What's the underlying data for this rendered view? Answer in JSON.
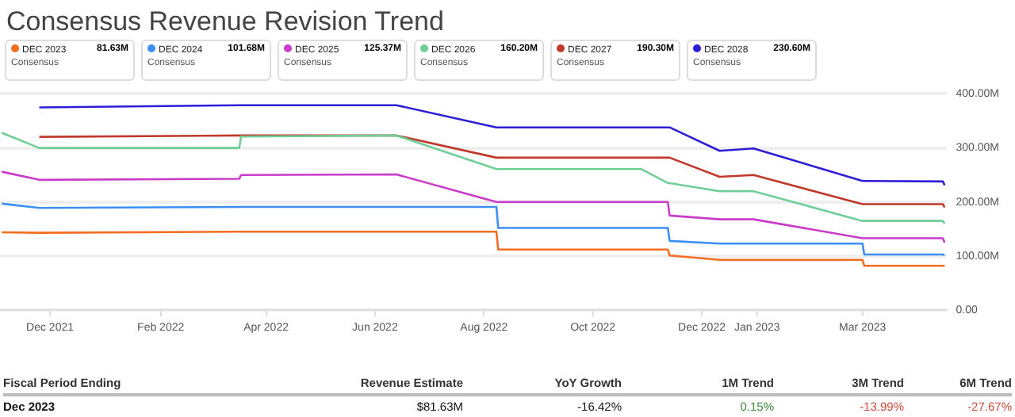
{
  "chart_data": {
    "type": "line",
    "title": "Consensus Revenue Revision Trend",
    "legend": "top",
    "grid": "y",
    "marker": "none",
    "line_style": "solid",
    "x": [
      "2021-11-04",
      "2021-11-25",
      "2022-03-17",
      "2022-03-18",
      "2022-06-13",
      "2022-08-08",
      "2022-08-09",
      "2022-10-28",
      "2022-11-12",
      "2022-11-13",
      "2022-12-11",
      "2022-12-30",
      "2023-03-01",
      "2023-03-02",
      "2023-04-15",
      "2023-04-16"
    ],
    "xlim": [
      "2021-11-03",
      "2023-04-17"
    ],
    "xticks": [
      {
        "value": "2021-12-01",
        "label": "Dec 2021"
      },
      {
        "value": "2022-02-01",
        "label": "Feb 2022"
      },
      {
        "value": "2022-04-01",
        "label": "Apr 2022"
      },
      {
        "value": "2022-06-01",
        "label": "Jun 2022"
      },
      {
        "value": "2022-08-01",
        "label": "Aug 2022"
      },
      {
        "value": "2022-10-01",
        "label": "Oct 2022"
      },
      {
        "value": "2022-12-01",
        "label": "Dec 2022"
      },
      {
        "value": "2023-01-01",
        "label": "Jan 2023"
      },
      {
        "value": "2023-03-01",
        "label": "Mar 2023"
      }
    ],
    "ylim": [
      0,
      400
    ],
    "yticks": [
      {
        "value": 0,
        "label": "0.00"
      },
      {
        "value": 100,
        "label": "100.00M"
      },
      {
        "value": 200,
        "label": "200.00M"
      },
      {
        "value": 300,
        "label": "300.00M"
      },
      {
        "value": 400,
        "label": "400.00M"
      }
    ],
    "series": [
      {
        "name": "DEC 2023",
        "color": "#f26c21",
        "values": [
          144,
          143,
          145,
          145,
          145,
          145,
          112,
          112,
          112,
          101,
          93,
          93,
          93,
          82,
          82,
          82
        ]
      },
      {
        "name": "DEC 2024",
        "color": "#3b8ff5",
        "values": [
          197,
          189,
          191,
          191,
          191,
          191,
          152,
          152,
          152,
          128,
          123,
          123,
          123,
          103,
          103,
          102
        ]
      },
      {
        "name": "DEC 2025",
        "color": "#c93bc9",
        "values": [
          256,
          241,
          243,
          250,
          251,
          200,
          200,
          200,
          200,
          175,
          168,
          168,
          133,
          133,
          133,
          125
        ]
      },
      {
        "name": "DEC 2026",
        "color": "#6fcf97",
        "values": [
          328,
          300,
          300,
          321,
          323,
          261,
          261,
          261,
          235,
          235,
          220,
          220,
          165,
          165,
          165,
          160
        ]
      },
      {
        "name": "DEC 2027",
        "color": "#c0392b",
        "values": [
          null,
          320.5,
          323,
          323,
          323,
          282,
          282,
          282,
          282,
          282,
          246.6,
          250,
          196,
          196,
          196,
          190
        ]
      },
      {
        "name": "DEC 2028",
        "color": "#2f1ed8",
        "values": [
          null,
          375,
          379,
          379,
          379,
          338,
          338,
          338,
          338,
          338,
          294.7,
          299,
          239,
          239,
          238,
          231
        ]
      }
    ],
    "annotations": [
      "81.63M",
      "101.68M",
      "125.37M",
      "160.20M",
      "190.30M",
      "230.60M",
      "Consensus",
      "Consensus",
      "Consensus",
      "Consensus",
      "Consensus",
      "Consensus",
      "Fiscal Period Ending",
      "Revenue Estimate",
      "YoY Growth",
      "1M Trend",
      "3M Trend",
      "6M Trend",
      "Dec 2023",
      "$81.63M",
      "-16.42%",
      "0.15%",
      "-13.99%",
      "-27.67%"
    ]
  }
}
